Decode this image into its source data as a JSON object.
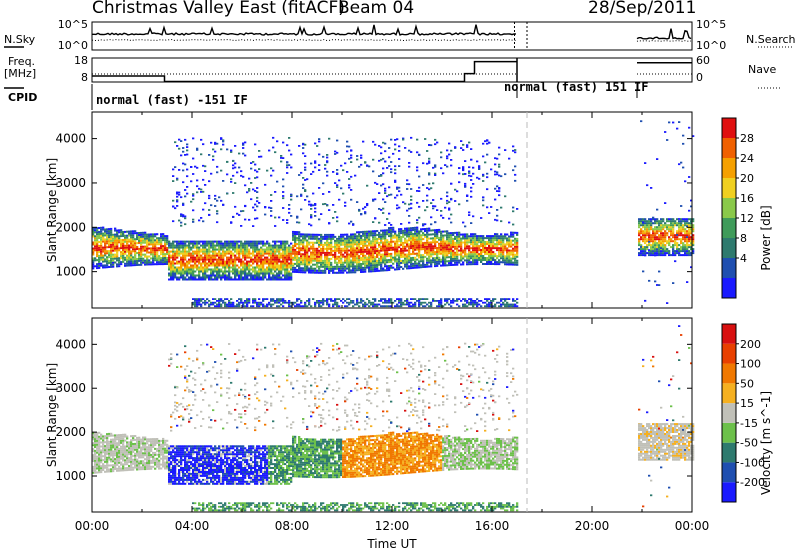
{
  "header": {
    "radar_name": "Christmas Valley East (fitACF)",
    "beam": "Beam 04",
    "date": "28/Sep/2011"
  },
  "side_labels": {
    "nsky": "N.Sky",
    "nsearch": "N.Search",
    "freq": "Freq.",
    "freq_unit": "[MHz]",
    "nave": "Nave",
    "cpid": "CPID"
  },
  "modes": {
    "mode1": "normal (fast) -151 IF",
    "mode2": "normal (fast) 151 IF"
  },
  "colors": {
    "power_scale": [
      "#1a1aff",
      "#1f4fb0",
      "#2e7a6e",
      "#3f9b5a",
      "#8ac94a",
      "#f0d020",
      "#f5a000",
      "#f06000",
      "#e01010"
    ],
    "velocity_scale": [
      "#1a1aff",
      "#1f4fb0",
      "#2e7a6e",
      "#6cc04a",
      "#c0c0b8",
      "#f5b020",
      "#f07800",
      "#e84000",
      "#d81010"
    ]
  },
  "chart_data": [
    {
      "type": "line",
      "name": "noise",
      "left_ticks": [
        "10^5",
        "10^0"
      ],
      "right_ticks": [
        "10^5",
        "10^0"
      ],
      "xlim": [
        0,
        24
      ],
      "data_gap": [
        17.0,
        21.8
      ],
      "markers": [
        16.9,
        17.4
      ]
    },
    {
      "type": "line",
      "name": "freq-nave",
      "left_ticks": [
        "18",
        "8"
      ],
      "right_ticks": [
        "60",
        "0"
      ],
      "xlim": [
        0,
        24
      ],
      "freq_segments": [
        [
          0,
          2.9,
          10.5
        ],
        [
          2.9,
          14.9,
          8.2
        ],
        [
          14.9,
          15.3,
          11.5
        ],
        [
          15.3,
          17.0,
          16.5
        ],
        [
          21.8,
          24,
          16.0
        ]
      ],
      "nave_level": 20,
      "data_gap": [
        17.0,
        21.8
      ]
    },
    {
      "type": "heatmap",
      "name": "power",
      "ylabel": "Slant Range [km]",
      "yticks": [
        1000,
        2000,
        3000,
        4000
      ],
      "ylim": [
        180,
        4600
      ],
      "xlim": [
        0,
        24
      ],
      "colorbar_label": "Power [dB]",
      "colorbar_ticks": [
        "28",
        "24",
        "20",
        "16",
        "12",
        "8",
        "4"
      ],
      "data_gap": [
        17.0,
        21.8
      ]
    },
    {
      "type": "heatmap",
      "name": "velocity",
      "ylabel": "Slant Range [km]",
      "yticks": [
        1000,
        2000,
        3000,
        4000
      ],
      "ylim": [
        180,
        4600
      ],
      "xlim": [
        0,
        24
      ],
      "xticks": [
        "00:00",
        "04:00",
        "08:00",
        "12:00",
        "16:00",
        "20:00",
        "00:00"
      ],
      "xlabel": "Time UT",
      "colorbar_label": "Velocity [m s^-1]",
      "colorbar_ticks": [
        "200",
        "100",
        "50",
        "15",
        "-15",
        "-50",
        "-100",
        "-200"
      ],
      "data_gap": [
        17.0,
        21.8
      ]
    }
  ]
}
